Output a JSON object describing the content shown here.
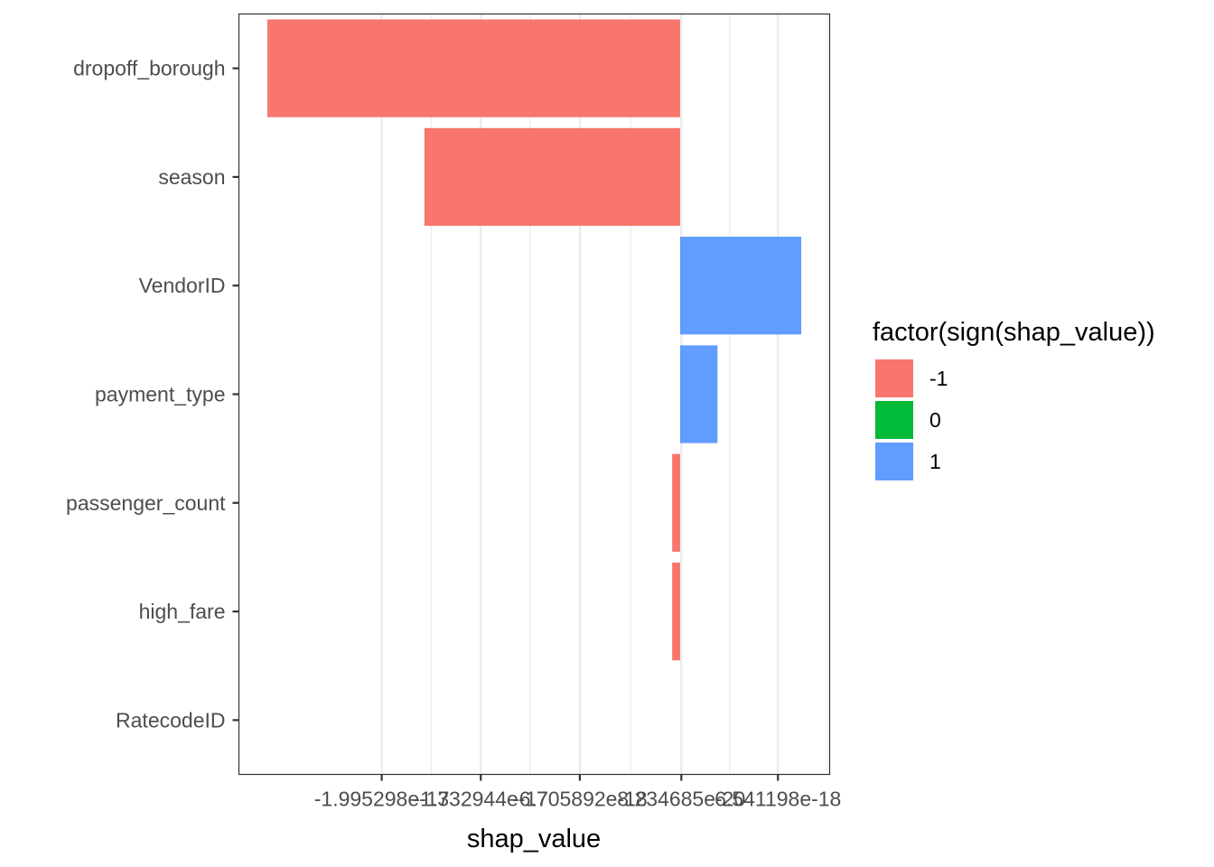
{
  "chart_data": {
    "type": "bar",
    "orientation": "horizontal",
    "categories": [
      "dropoff_borough",
      "season",
      "VendorID",
      "payment_type",
      "passenger_count",
      "high_fare",
      "RatecodeID"
    ],
    "values": [
      -2.76e-17,
      -1.71e-17,
      8.1e-18,
      2.5e-18,
      -5.3e-19,
      -5.3e-19,
      0
    ],
    "signs": [
      "-1",
      "-1",
      "1",
      "1",
      "-1",
      "-1",
      "0"
    ],
    "xlabel": "shap_value",
    "ylabel": "",
    "xlim": [
      -2.95e-17,
      1e-17
    ],
    "xticks": [
      -1.995298e-17,
      -1.332944e-17,
      -6.705892e-18,
      8.234685e-20,
      6.541198e-18
    ],
    "xtick_labels": [
      "-1.995298e-17",
      "-1.332944e-17",
      "-6.705892e-18",
      "8.234685e-20",
      "6.541198e-18"
    ],
    "grid": true,
    "legend": {
      "title": "factor(sign(shap_value))",
      "position": "right",
      "entries": [
        {
          "label": "-1",
          "color": "#F8766D"
        },
        {
          "label": "0",
          "color": "#00BA38"
        },
        {
          "label": "1",
          "color": "#619CFF"
        }
      ]
    }
  }
}
